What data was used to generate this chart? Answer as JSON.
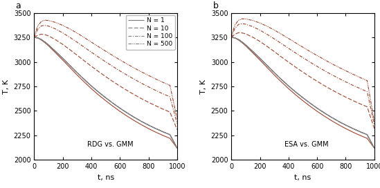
{
  "title_a": "RDG vs. GMM",
  "title_b": "ESA vs. GMM",
  "label_a": "a",
  "label_b": "b",
  "xlabel": "t, ns",
  "ylabel": "T, K",
  "ylim": [
    2000,
    3500
  ],
  "xlim": [
    0,
    1000
  ],
  "yticks": [
    2000,
    2250,
    2500,
    2750,
    3000,
    3250,
    3500
  ],
  "xticks": [
    0,
    200,
    400,
    600,
    800,
    1000
  ],
  "legend_labels": [
    "N = 1",
    "N = 10",
    "N = 100",
    "N = 500"
  ],
  "color_gmm": "#7f7f7f",
  "color_rdg": "#9e4e38",
  "color_esa": "#9e4e38",
  "color_legend_line": "#7f7f7f",
  "t": [
    0,
    10,
    25,
    50,
    75,
    100,
    150,
    200,
    250,
    300,
    350,
    400,
    450,
    500,
    550,
    600,
    650,
    700,
    750,
    800,
    850,
    900,
    950,
    1000
  ],
  "gmm_N1": [
    3250,
    3250,
    3248,
    3230,
    3205,
    3175,
    3108,
    3038,
    2965,
    2892,
    2822,
    2755,
    2693,
    2635,
    2580,
    2528,
    2480,
    2435,
    2393,
    2355,
    2320,
    2287,
    2257,
    2120
  ],
  "gmm_N10": [
    3250,
    3250,
    3248,
    3230,
    3205,
    3175,
    3108,
    3038,
    2965,
    2892,
    2822,
    2755,
    2693,
    2635,
    2580,
    2528,
    2480,
    2435,
    2393,
    2355,
    2320,
    2287,
    2257,
    2120
  ],
  "gmm_N100": [
    3250,
    3250,
    3248,
    3230,
    3205,
    3175,
    3108,
    3038,
    2965,
    2892,
    2822,
    2755,
    2693,
    2635,
    2580,
    2528,
    2480,
    2435,
    2393,
    2355,
    2320,
    2287,
    2257,
    2120
  ],
  "gmm_N500": [
    3250,
    3250,
    3248,
    3230,
    3205,
    3175,
    3108,
    3038,
    2965,
    2892,
    2822,
    2755,
    2693,
    2635,
    2580,
    2528,
    2480,
    2435,
    2393,
    2355,
    2320,
    2287,
    2257,
    2120
  ],
  "rdg_N1": [
    3250,
    3250,
    3247,
    3225,
    3198,
    3166,
    3094,
    3020,
    2944,
    2868,
    2796,
    2728,
    2664,
    2605,
    2549,
    2496,
    2447,
    2401,
    2359,
    2319,
    2283,
    2250,
    2219,
    2120
  ],
  "rdg_N10": [
    3250,
    3260,
    3275,
    3285,
    3280,
    3268,
    3228,
    3180,
    3126,
    3070,
    3013,
    2957,
    2903,
    2851,
    2801,
    2754,
    2709,
    2666,
    2626,
    2588,
    2553,
    2519,
    2488,
    2310
  ],
  "rdg_N100": [
    3250,
    3290,
    3335,
    3370,
    3375,
    3368,
    3338,
    3298,
    3252,
    3203,
    3152,
    3101,
    3051,
    3002,
    2955,
    2909,
    2866,
    2824,
    2784,
    2746,
    2710,
    2676,
    2644,
    2370
  ],
  "rdg_N500": [
    3250,
    3310,
    3370,
    3415,
    3428,
    3425,
    3405,
    3375,
    3338,
    3296,
    3251,
    3204,
    3157,
    3111,
    3066,
    3022,
    2980,
    2939,
    2900,
    2863,
    2827,
    2793,
    2761,
    2420
  ],
  "esa_N1": [
    3250,
    3250,
    3247,
    3225,
    3198,
    3166,
    3094,
    3020,
    2944,
    2868,
    2796,
    2728,
    2664,
    2605,
    2549,
    2496,
    2447,
    2401,
    2359,
    2319,
    2283,
    2250,
    2219,
    2120
  ],
  "esa_N10": [
    3250,
    3265,
    3285,
    3300,
    3298,
    3288,
    3254,
    3210,
    3160,
    3107,
    3052,
    2999,
    2947,
    2897,
    2849,
    2803,
    2759,
    2717,
    2678,
    2641,
    2606,
    2573,
    2542,
    2320
  ],
  "esa_N100": [
    3250,
    3295,
    3345,
    3385,
    3392,
    3387,
    3362,
    3326,
    3283,
    3237,
    3189,
    3140,
    3092,
    3045,
    2999,
    2955,
    2913,
    2872,
    2834,
    2797,
    2762,
    2729,
    2697,
    2360
  ],
  "esa_N500": [
    3250,
    3315,
    3380,
    3428,
    3442,
    3441,
    3425,
    3399,
    3366,
    3327,
    3285,
    3241,
    3196,
    3152,
    3108,
    3066,
    3025,
    2985,
    2947,
    2911,
    2876,
    2842,
    2810,
    2390
  ]
}
